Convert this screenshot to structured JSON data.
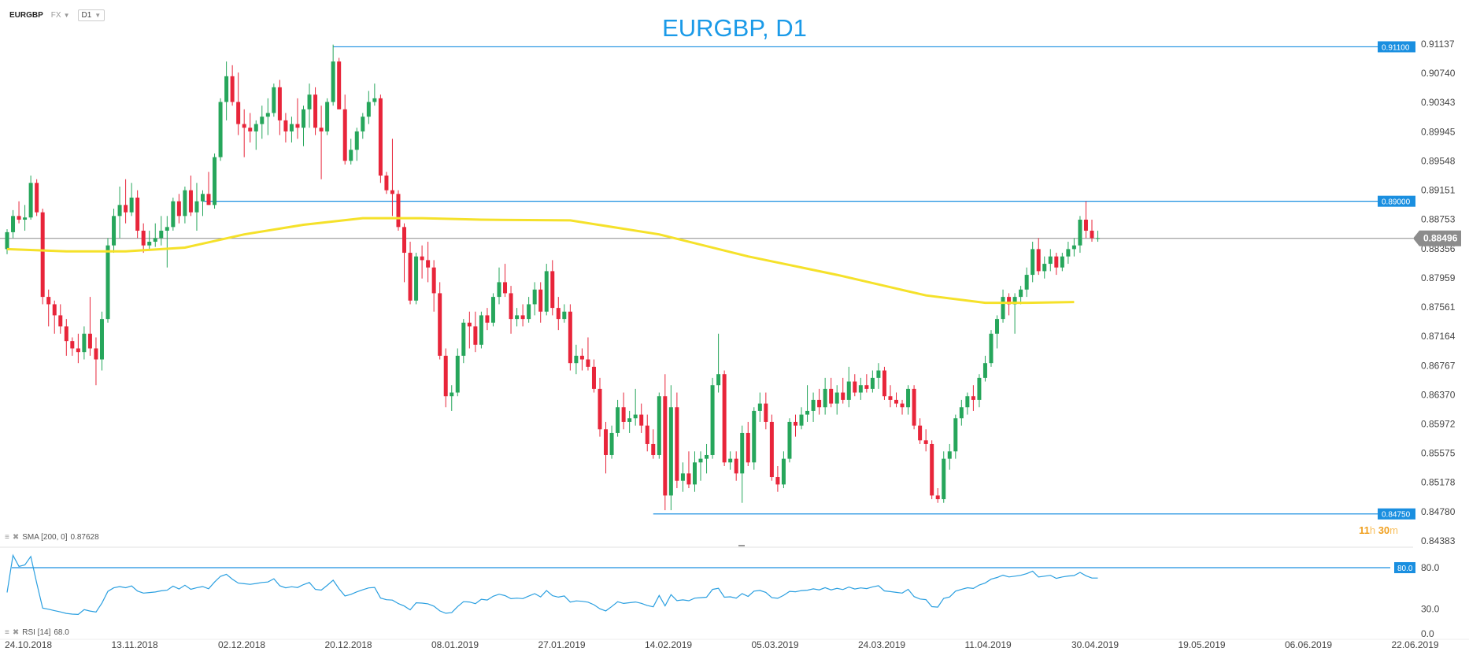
{
  "toolbar": {
    "symbol": "EURGBP",
    "type_label": "FX",
    "timeframe": "D1"
  },
  "title": "EURGBP, D1",
  "indicators": {
    "sma_label": "SMA [200, 0]",
    "sma_value": "0.87628",
    "rsi_label": "RSI [14]",
    "rsi_value": "68.0"
  },
  "countdown": {
    "hours": "11",
    "h": "h",
    "minutes": "30",
    "m": "m"
  },
  "colors": {
    "bull": "#26a65b",
    "bear": "#e8253a",
    "sma": "#f5e12a",
    "rsi": "#2a9fe0",
    "hline": "#1a8fe0",
    "current": "#8a8a8a"
  },
  "chart_data": {
    "type": "candlestick",
    "title": "EURGBP, D1",
    "price_axis": {
      "min": 0.84383,
      "max": 0.91137,
      "ticks": [
        "0.91137",
        "0.90740",
        "0.90343",
        "0.89945",
        "0.89548",
        "0.89151",
        "0.88753",
        "0.88356",
        "0.87959",
        "0.87561",
        "0.87164",
        "0.86767",
        "0.86370",
        "0.85972",
        "0.85575",
        "0.85178",
        "0.84780",
        "0.84383"
      ]
    },
    "time_axis": {
      "labels": [
        "24.10.2018",
        "13.11.2018",
        "02.12.2018",
        "20.12.2018",
        "08.01.2019",
        "27.01.2019",
        "14.02.2019",
        "05.03.2019",
        "24.03.2019",
        "11.04.2019",
        "30.04.2019",
        "19.05.2019",
        "06.06.2019",
        "22.06.2019"
      ]
    },
    "horizontal_lines": [
      {
        "value": 0.911,
        "label": "0.91100"
      },
      {
        "value": 0.89,
        "label": "0.89000"
      },
      {
        "value": 0.8475,
        "label": "0.84750"
      }
    ],
    "current_price": {
      "value": 0.88496,
      "label": "0.88496"
    },
    "candles": [
      [
        0.8835,
        0.8862,
        0.8828,
        0.8858
      ],
      [
        0.8858,
        0.8888,
        0.885,
        0.888
      ],
      [
        0.888,
        0.89,
        0.887,
        0.8875
      ],
      [
        0.8875,
        0.8895,
        0.886,
        0.8878
      ],
      [
        0.8878,
        0.8935,
        0.8875,
        0.8925
      ],
      [
        0.8925,
        0.893,
        0.888,
        0.8885
      ],
      [
        0.8885,
        0.889,
        0.876,
        0.877
      ],
      [
        0.877,
        0.878,
        0.873,
        0.876
      ],
      [
        0.876,
        0.8765,
        0.872,
        0.8745
      ],
      [
        0.8745,
        0.876,
        0.872,
        0.873
      ],
      [
        0.873,
        0.874,
        0.869,
        0.871
      ],
      [
        0.871,
        0.8715,
        0.869,
        0.87
      ],
      [
        0.87,
        0.872,
        0.868,
        0.8695
      ],
      [
        0.8695,
        0.873,
        0.8685,
        0.872
      ],
      [
        0.872,
        0.877,
        0.869,
        0.87
      ],
      [
        0.87,
        0.8715,
        0.865,
        0.8685
      ],
      [
        0.8685,
        0.875,
        0.867,
        0.874
      ],
      [
        0.874,
        0.885,
        0.8735,
        0.884
      ],
      [
        0.884,
        0.889,
        0.883,
        0.888
      ],
      [
        0.888,
        0.892,
        0.885,
        0.8895
      ],
      [
        0.8895,
        0.893,
        0.887,
        0.8885
      ],
      [
        0.8885,
        0.8925,
        0.888,
        0.8905
      ],
      [
        0.8905,
        0.8915,
        0.885,
        0.886
      ],
      [
        0.886,
        0.887,
        0.883,
        0.884
      ],
      [
        0.884,
        0.886,
        0.8835,
        0.8845
      ],
      [
        0.8845,
        0.887,
        0.8838,
        0.885
      ],
      [
        0.885,
        0.888,
        0.884,
        0.886
      ],
      [
        0.886,
        0.888,
        0.881,
        0.8865
      ],
      [
        0.8865,
        0.8905,
        0.886,
        0.89
      ],
      [
        0.89,
        0.891,
        0.887,
        0.888
      ],
      [
        0.888,
        0.892,
        0.887,
        0.8915
      ],
      [
        0.8915,
        0.8935,
        0.888,
        0.8885
      ],
      [
        0.8885,
        0.8925,
        0.886,
        0.89
      ],
      [
        0.89,
        0.8915,
        0.888,
        0.891
      ],
      [
        0.891,
        0.894,
        0.8895,
        0.8895
      ],
      [
        0.8895,
        0.8965,
        0.889,
        0.896
      ],
      [
        0.896,
        0.904,
        0.8955,
        0.9035
      ],
      [
        0.9035,
        0.909,
        0.901,
        0.907
      ],
      [
        0.907,
        0.9085,
        0.903,
        0.9035
      ],
      [
        0.9035,
        0.9075,
        0.899,
        0.9005
      ],
      [
        0.9005,
        0.9025,
        0.896,
        0.9
      ],
      [
        0.9,
        0.902,
        0.898,
        0.8995
      ],
      [
        0.8995,
        0.901,
        0.897,
        0.9005
      ],
      [
        0.9005,
        0.903,
        0.8985,
        0.9015
      ],
      [
        0.9015,
        0.904,
        0.899,
        0.902
      ],
      [
        0.902,
        0.906,
        0.9015,
        0.9055
      ],
      [
        0.9055,
        0.9065,
        0.899,
        0.901
      ],
      [
        0.901,
        0.902,
        0.898,
        0.8995
      ],
      [
        0.8995,
        0.9015,
        0.898,
        0.9005
      ],
      [
        0.9005,
        0.904,
        0.8985,
        0.9
      ],
      [
        0.9,
        0.903,
        0.8975,
        0.9025
      ],
      [
        0.9025,
        0.906,
        0.9,
        0.9045
      ],
      [
        0.9045,
        0.9055,
        0.899,
        0.9
      ],
      [
        0.9,
        0.903,
        0.893,
        0.8995
      ],
      [
        0.8995,
        0.904,
        0.899,
        0.9035
      ],
      [
        0.9035,
        0.9113,
        0.903,
        0.909
      ],
      [
        0.909,
        0.9095,
        0.9025,
        0.9025
      ],
      [
        0.9025,
        0.9045,
        0.895,
        0.8955
      ],
      [
        0.8955,
        0.8985,
        0.895,
        0.897
      ],
      [
        0.897,
        0.9,
        0.8955,
        0.8995
      ],
      [
        0.8995,
        0.902,
        0.8985,
        0.9015
      ],
      [
        0.9015,
        0.905,
        0.9005,
        0.9035
      ],
      [
        0.9035,
        0.906,
        0.903,
        0.904
      ],
      [
        0.904,
        0.9045,
        0.8925,
        0.8935
      ],
      [
        0.8935,
        0.894,
        0.891,
        0.8915
      ],
      [
        0.8915,
        0.8985,
        0.888,
        0.891
      ],
      [
        0.891,
        0.8915,
        0.886,
        0.8865
      ],
      [
        0.8865,
        0.887,
        0.879,
        0.883
      ],
      [
        0.883,
        0.8845,
        0.876,
        0.8765
      ],
      [
        0.8765,
        0.883,
        0.876,
        0.8825
      ],
      [
        0.8825,
        0.884,
        0.8795,
        0.882
      ],
      [
        0.882,
        0.8845,
        0.879,
        0.881
      ],
      [
        0.881,
        0.882,
        0.875,
        0.8775
      ],
      [
        0.8775,
        0.879,
        0.8685,
        0.869
      ],
      [
        0.869,
        0.87,
        0.862,
        0.8635
      ],
      [
        0.8635,
        0.865,
        0.8615,
        0.864
      ],
      [
        0.864,
        0.87,
        0.8635,
        0.869
      ],
      [
        0.869,
        0.874,
        0.868,
        0.8735
      ],
      [
        0.8735,
        0.875,
        0.87,
        0.873
      ],
      [
        0.873,
        0.875,
        0.8695,
        0.8705
      ],
      [
        0.8705,
        0.875,
        0.87,
        0.8745
      ],
      [
        0.8745,
        0.8755,
        0.8725,
        0.8735
      ],
      [
        0.8735,
        0.8775,
        0.873,
        0.877
      ],
      [
        0.877,
        0.881,
        0.876,
        0.879
      ],
      [
        0.879,
        0.8815,
        0.877,
        0.8775
      ],
      [
        0.8775,
        0.8785,
        0.872,
        0.874
      ],
      [
        0.874,
        0.8755,
        0.873,
        0.8745
      ],
      [
        0.8745,
        0.876,
        0.873,
        0.874
      ],
      [
        0.874,
        0.877,
        0.8735,
        0.876
      ],
      [
        0.876,
        0.879,
        0.8745,
        0.878
      ],
      [
        0.878,
        0.879,
        0.8735,
        0.875
      ],
      [
        0.875,
        0.8815,
        0.8745,
        0.8805
      ],
      [
        0.8805,
        0.882,
        0.8745,
        0.8755
      ],
      [
        0.8755,
        0.877,
        0.8725,
        0.874
      ],
      [
        0.874,
        0.876,
        0.8735,
        0.875
      ],
      [
        0.875,
        0.876,
        0.867,
        0.868
      ],
      [
        0.868,
        0.8705,
        0.8665,
        0.869
      ],
      [
        0.869,
        0.87,
        0.867,
        0.8685
      ],
      [
        0.8685,
        0.8715,
        0.867,
        0.8675
      ],
      [
        0.8675,
        0.8685,
        0.864,
        0.8645
      ],
      [
        0.8645,
        0.866,
        0.858,
        0.859
      ],
      [
        0.859,
        0.86,
        0.853,
        0.8555
      ],
      [
        0.8555,
        0.8595,
        0.855,
        0.8585
      ],
      [
        0.8585,
        0.863,
        0.858,
        0.862
      ],
      [
        0.862,
        0.864,
        0.859,
        0.86
      ],
      [
        0.86,
        0.8615,
        0.8585,
        0.8605
      ],
      [
        0.8605,
        0.8645,
        0.8595,
        0.861
      ],
      [
        0.861,
        0.8625,
        0.8585,
        0.8595
      ],
      [
        0.8595,
        0.861,
        0.856,
        0.857
      ],
      [
        0.857,
        0.859,
        0.855,
        0.8555
      ],
      [
        0.8555,
        0.864,
        0.855,
        0.8635
      ],
      [
        0.8635,
        0.8665,
        0.848,
        0.85
      ],
      [
        0.85,
        0.865,
        0.848,
        0.862
      ],
      [
        0.862,
        0.864,
        0.851,
        0.852
      ],
      [
        0.852,
        0.8545,
        0.8505,
        0.853
      ],
      [
        0.853,
        0.856,
        0.851,
        0.8515
      ],
      [
        0.8515,
        0.856,
        0.8505,
        0.8545
      ],
      [
        0.8545,
        0.856,
        0.852,
        0.855
      ],
      [
        0.855,
        0.857,
        0.853,
        0.8555
      ],
      [
        0.8555,
        0.866,
        0.855,
        0.865
      ],
      [
        0.865,
        0.872,
        0.864,
        0.8665
      ],
      [
        0.8665,
        0.867,
        0.854,
        0.8545
      ],
      [
        0.8545,
        0.856,
        0.8535,
        0.855
      ],
      [
        0.855,
        0.856,
        0.852,
        0.853
      ],
      [
        0.853,
        0.8595,
        0.849,
        0.8585
      ],
      [
        0.8585,
        0.86,
        0.854,
        0.8545
      ],
      [
        0.8545,
        0.862,
        0.8535,
        0.8615
      ],
      [
        0.8615,
        0.864,
        0.86,
        0.8625
      ],
      [
        0.8625,
        0.864,
        0.859,
        0.86
      ],
      [
        0.86,
        0.861,
        0.852,
        0.8525
      ],
      [
        0.8525,
        0.854,
        0.8505,
        0.8515
      ],
      [
        0.8515,
        0.856,
        0.851,
        0.855
      ],
      [
        0.855,
        0.8605,
        0.8545,
        0.86
      ],
      [
        0.86,
        0.861,
        0.858,
        0.8595
      ],
      [
        0.8595,
        0.862,
        0.859,
        0.861
      ],
      [
        0.861,
        0.865,
        0.86,
        0.8615
      ],
      [
        0.8615,
        0.864,
        0.86,
        0.863
      ],
      [
        0.863,
        0.8645,
        0.861,
        0.862
      ],
      [
        0.862,
        0.866,
        0.861,
        0.8645
      ],
      [
        0.8645,
        0.866,
        0.862,
        0.8625
      ],
      [
        0.8625,
        0.865,
        0.861,
        0.864
      ],
      [
        0.864,
        0.866,
        0.8625,
        0.863
      ],
      [
        0.863,
        0.8675,
        0.862,
        0.8655
      ],
      [
        0.8655,
        0.8665,
        0.8635,
        0.864
      ],
      [
        0.864,
        0.866,
        0.863,
        0.865
      ],
      [
        0.865,
        0.8665,
        0.864,
        0.8645
      ],
      [
        0.8645,
        0.867,
        0.864,
        0.866
      ],
      [
        0.866,
        0.868,
        0.8645,
        0.867
      ],
      [
        0.867,
        0.8675,
        0.863,
        0.8635
      ],
      [
        0.8635,
        0.865,
        0.862,
        0.863
      ],
      [
        0.863,
        0.864,
        0.862,
        0.8625
      ],
      [
        0.8625,
        0.863,
        0.861,
        0.862
      ],
      [
        0.862,
        0.865,
        0.861,
        0.8645
      ],
      [
        0.8645,
        0.865,
        0.859,
        0.8595
      ],
      [
        0.8595,
        0.8605,
        0.857,
        0.8575
      ],
      [
        0.8575,
        0.859,
        0.856,
        0.857
      ],
      [
        0.857,
        0.8575,
        0.8495,
        0.85
      ],
      [
        0.85,
        0.851,
        0.849,
        0.8495
      ],
      [
        0.8495,
        0.856,
        0.849,
        0.855
      ],
      [
        0.855,
        0.857,
        0.8535,
        0.856
      ],
      [
        0.856,
        0.861,
        0.855,
        0.8605
      ],
      [
        0.8605,
        0.863,
        0.8595,
        0.862
      ],
      [
        0.862,
        0.864,
        0.861,
        0.8635
      ],
      [
        0.8635,
        0.865,
        0.8615,
        0.863
      ],
      [
        0.863,
        0.8665,
        0.862,
        0.866
      ],
      [
        0.866,
        0.869,
        0.8655,
        0.868
      ],
      [
        0.868,
        0.8725,
        0.8675,
        0.872
      ],
      [
        0.872,
        0.8745,
        0.87,
        0.874
      ],
      [
        0.874,
        0.878,
        0.8735,
        0.877
      ],
      [
        0.877,
        0.8775,
        0.8745,
        0.876
      ],
      [
        0.876,
        0.8775,
        0.872,
        0.877
      ],
      [
        0.877,
        0.8785,
        0.876,
        0.878
      ],
      [
        0.878,
        0.881,
        0.877,
        0.88
      ],
      [
        0.88,
        0.8845,
        0.879,
        0.8835
      ],
      [
        0.8835,
        0.885,
        0.88,
        0.8805
      ],
      [
        0.8805,
        0.8825,
        0.8795,
        0.8815
      ],
      [
        0.8815,
        0.8835,
        0.8805,
        0.8825
      ],
      [
        0.8825,
        0.883,
        0.88,
        0.881
      ],
      [
        0.881,
        0.883,
        0.8805,
        0.8825
      ],
      [
        0.8825,
        0.8845,
        0.8815,
        0.8835
      ],
      [
        0.8835,
        0.885,
        0.8825,
        0.884
      ],
      [
        0.884,
        0.888,
        0.883,
        0.8875
      ],
      [
        0.8875,
        0.89,
        0.885,
        0.886
      ],
      [
        0.886,
        0.8875,
        0.8845,
        0.885
      ],
      [
        0.885,
        0.886,
        0.8845,
        0.885
      ]
    ],
    "sma": {
      "name": "SMA [200, 0]",
      "value": "0.87628"
    },
    "rsi": {
      "name": "RSI [14]",
      "value": "68.0",
      "axis": {
        "min": 0,
        "max": 100,
        "ticks": [
          "80.0",
          "30.0",
          "0.0"
        ]
      },
      "overbought_line": {
        "value": 80,
        "label": "80.0"
      }
    }
  }
}
